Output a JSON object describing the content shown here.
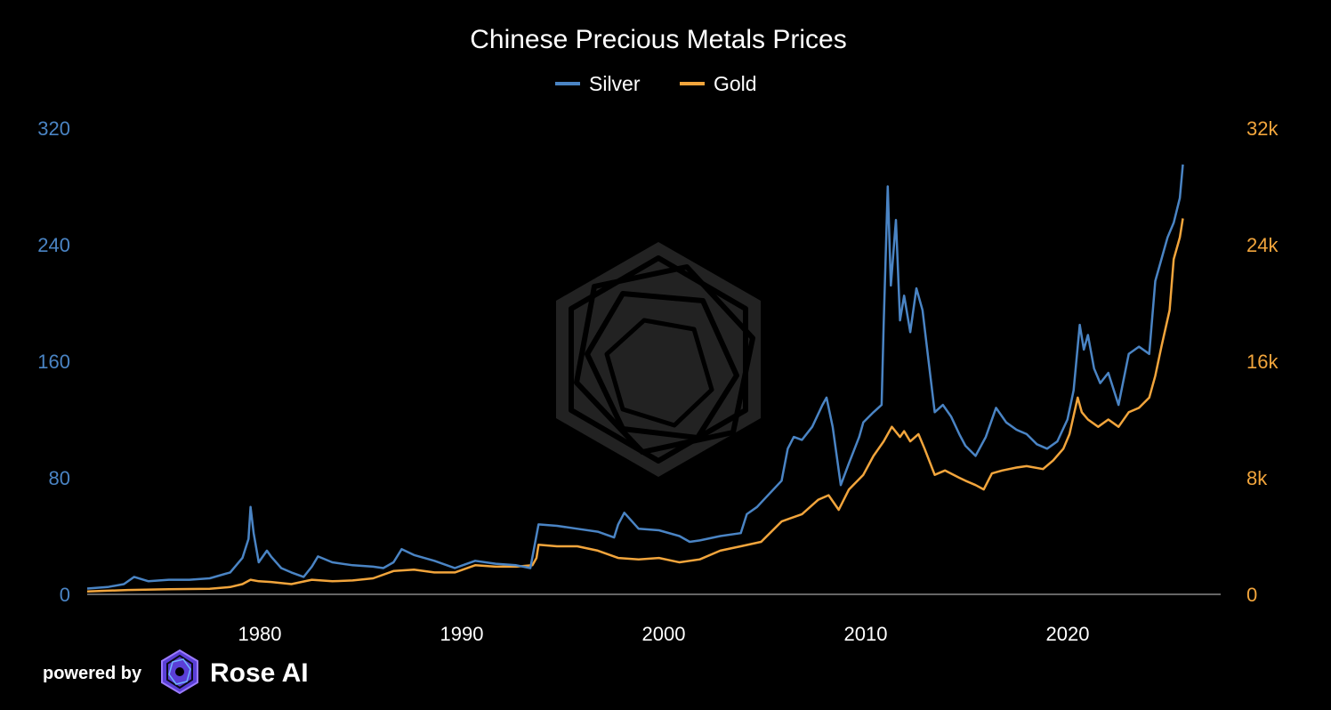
{
  "brand": {
    "powered_by": "powered by",
    "name": "Rose AI"
  },
  "colors": {
    "background": "#000000",
    "silver": "#4a84c4",
    "gold": "#f2a53c",
    "text": "#ffffff",
    "axis": "#888888",
    "watermark": "#2b2b2b"
  },
  "chart_data": {
    "type": "line",
    "title": "Chinese Precious Metals Prices",
    "legend": [
      "Silver",
      "Gold"
    ],
    "legend_position": "top-center",
    "grid": false,
    "xlim": [
      1972,
      2027.5
    ],
    "x_ticks": [
      1980,
      1990,
      2000,
      2010,
      2020
    ],
    "x_tick_labels": [
      "1980",
      "1990",
      "2000",
      "2010",
      "2020"
    ],
    "y_left": {
      "series": "Silver",
      "ylim": [
        0,
        320
      ],
      "ticks": [
        0,
        80,
        160,
        240,
        320
      ],
      "tick_labels": [
        "0",
        "80",
        "160",
        "240",
        "320"
      ]
    },
    "y_right": {
      "series": "Gold",
      "ylim": [
        0,
        32000
      ],
      "ticks": [
        0,
        8000,
        16000,
        24000,
        32000
      ],
      "tick_labels": [
        "0",
        "8k",
        "16k",
        "24k",
        "32k"
      ]
    },
    "series": [
      {
        "name": "Silver",
        "axis": "left",
        "x": [
          1972,
          1973,
          1973.8,
          1974.3,
          1975,
          1976,
          1977,
          1978,
          1979,
          1979.6,
          1979.9,
          1980.0,
          1980.15,
          1980.4,
          1980.8,
          1981,
          1981.5,
          1982,
          1982.6,
          1983,
          1983.3,
          1984,
          1985,
          1986,
          1986.5,
          1987,
          1987.4,
          1988,
          1989,
          1990,
          1991,
          1992,
          1993,
          1993.7,
          1993.9,
          1994.1,
          1995,
          1996,
          1997,
          1997.8,
          1998.0,
          1998.3,
          1999,
          2000,
          2001,
          2001.5,
          2002,
          2003,
          2004,
          2004.3,
          2004.8,
          2005,
          2006,
          2006.3,
          2006.6,
          2007,
          2007.5,
          2008,
          2008.2,
          2008.5,
          2008.9,
          2009.3,
          2009.8,
          2010,
          2010.5,
          2010.9,
          2011,
          2011.2,
          2011.35,
          2011.6,
          2011.8,
          2012,
          2012.3,
          2012.6,
          2012.9,
          2013.2,
          2013.5,
          2013.9,
          2014.3,
          2014.7,
          2015,
          2015.5,
          2016,
          2016.5,
          2017,
          2017.5,
          2018,
          2018.5,
          2019,
          2019.5,
          2020.0,
          2020.3,
          2020.6,
          2020.8,
          2021.0,
          2021.3,
          2021.6,
          2022,
          2022.5,
          2023,
          2023.5,
          2024,
          2024.3,
          2024.6,
          2024.9,
          2025.2,
          2025.5,
          2025.65
        ],
        "values": [
          4,
          5,
          7,
          12,
          9,
          10,
          10,
          11,
          15,
          25,
          38,
          60,
          42,
          22,
          30,
          26,
          18,
          15,
          12,
          19,
          26,
          22,
          20,
          19,
          18,
          22,
          31,
          27,
          23,
          18,
          23,
          21,
          20,
          18,
          33,
          48,
          47,
          45,
          43,
          39,
          48,
          56,
          45,
          44,
          40,
          36,
          37,
          40,
          42,
          55,
          60,
          63,
          78,
          100,
          108,
          106,
          115,
          130,
          135,
          115,
          75,
          90,
          108,
          118,
          125,
          130,
          185,
          280,
          212,
          257,
          188,
          205,
          180,
          210,
          195,
          160,
          125,
          130,
          122,
          110,
          102,
          95,
          108,
          128,
          118,
          113,
          110,
          103,
          100,
          105,
          120,
          140,
          185,
          168,
          178,
          155,
          145,
          152,
          130,
          165,
          170,
          165,
          215,
          230,
          245,
          255,
          272,
          295
        ]
      },
      {
        "name": "Gold",
        "axis": "right",
        "x": [
          1972,
          1974,
          1976,
          1978,
          1979,
          1979.6,
          1980.0,
          1980.4,
          1981,
          1982,
          1983,
          1984,
          1985,
          1986,
          1987,
          1988,
          1989,
          1990,
          1991,
          1992,
          1993,
          1993.8,
          1994.0,
          1994.1,
          1995,
          1996,
          1997,
          1998,
          1999,
          2000,
          2001,
          2002,
          2003,
          2004,
          2005,
          2006,
          2007,
          2007.8,
          2008.3,
          2008.8,
          2009.3,
          2010,
          2010.5,
          2011,
          2011.4,
          2011.8,
          2012,
          2012.3,
          2012.7,
          2013,
          2013.5,
          2014,
          2014.7,
          2015,
          2015.5,
          2015.9,
          2016.3,
          2016.8,
          2017.5,
          2018,
          2018.8,
          2019.3,
          2019.8,
          2020.1,
          2020.5,
          2020.7,
          2021,
          2021.5,
          2022,
          2022.5,
          2023,
          2023.5,
          2024,
          2024.3,
          2024.6,
          2025.0,
          2025.2,
          2025.5,
          2025.65
        ],
        "values": [
          200,
          300,
          350,
          380,
          500,
          700,
          1000,
          900,
          850,
          700,
          1000,
          900,
          950,
          1100,
          1600,
          1700,
          1500,
          1500,
          2000,
          1900,
          1900,
          2000,
          2500,
          3400,
          3300,
          3300,
          3000,
          2500,
          2400,
          2500,
          2200,
          2400,
          3000,
          3300,
          3600,
          5000,
          5500,
          6500,
          6800,
          5800,
          7200,
          8200,
          9500,
          10500,
          11500,
          10800,
          11200,
          10500,
          11000,
          10000,
          8200,
          8500,
          8000,
          7800,
          7500,
          7200,
          8300,
          8500,
          8700,
          8800,
          8600,
          9200,
          10000,
          11000,
          13500,
          12500,
          12000,
          11500,
          12000,
          11500,
          12500,
          12800,
          13500,
          15000,
          17000,
          19500,
          23000,
          24500,
          25800
        ]
      }
    ]
  }
}
